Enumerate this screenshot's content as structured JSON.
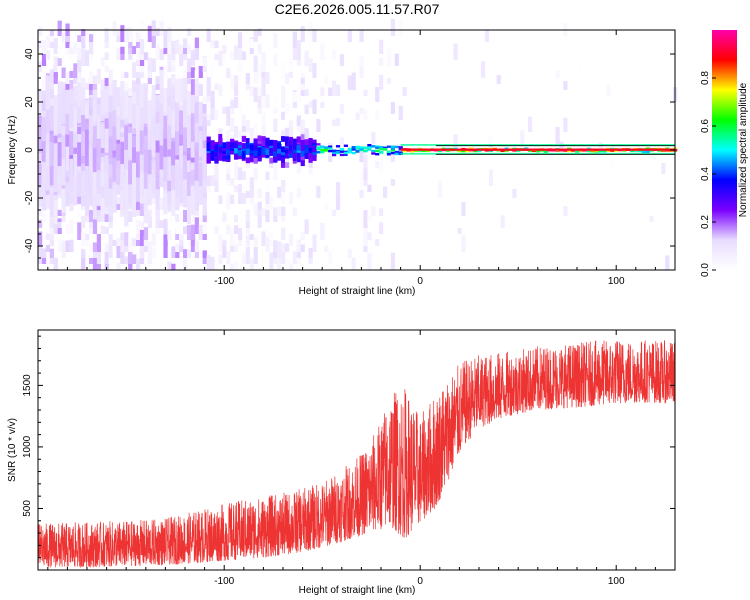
{
  "chart_data": [
    {
      "type": "heatmap",
      "title": "C2E6.2026.005.11.57.R07",
      "xlabel": "Height of straight line (km)",
      "ylabel": "Frequency (Hz)",
      "xlim": [
        -195,
        130
      ],
      "ylim": [
        -50,
        50
      ],
      "xticks": [
        -100,
        0,
        100
      ],
      "yticks": [
        -40,
        -20,
        0,
        20,
        40
      ],
      "colorbar": {
        "label": "Normalized spectral amplitude",
        "range": [
          0,
          1
        ],
        "ticks": [
          0.0,
          0.2,
          0.4,
          0.6,
          0.8
        ],
        "colormap": [
          "#ffffff",
          "#e8dcff",
          "#7a00ff",
          "#0000ff",
          "#00ffff",
          "#00ff00",
          "#ffff00",
          "#ff0000",
          "#ff00aa"
        ]
      },
      "ridge": {
        "frequency": 0,
        "description_segments": [
          {
            "x_from": -195,
            "x_to": -110,
            "spread_hz": 50,
            "amplitude": 0.15
          },
          {
            "x_from": -110,
            "x_to": -55,
            "spread_hz": 12,
            "amplitude": 0.4
          },
          {
            "x_from": -55,
            "x_to": -10,
            "spread_hz": 5,
            "amplitude": 0.55
          },
          {
            "x_from": -10,
            "x_to": 130,
            "spread_hz": 1.5,
            "amplitude": 0.9
          }
        ]
      }
    },
    {
      "type": "line",
      "title": "",
      "xlabel": "Height of straight line (km)",
      "ylabel": "SNR (10 * v/v)",
      "xlim": [
        -195,
        130
      ],
      "ylim": [
        0,
        1950
      ],
      "xticks": [
        -100,
        0,
        100
      ],
      "yticks": [
        500,
        1000,
        1500
      ],
      "color": "#ee3333",
      "envelope": [
        {
          "x": -195,
          "low": 20,
          "high": 380
        },
        {
          "x": -170,
          "low": 20,
          "high": 390
        },
        {
          "x": -150,
          "low": 30,
          "high": 400
        },
        {
          "x": -130,
          "low": 40,
          "high": 420
        },
        {
          "x": -110,
          "low": 60,
          "high": 500
        },
        {
          "x": -95,
          "low": 80,
          "high": 560
        },
        {
          "x": -80,
          "low": 100,
          "high": 600
        },
        {
          "x": -65,
          "low": 130,
          "high": 640
        },
        {
          "x": -50,
          "low": 180,
          "high": 720
        },
        {
          "x": -40,
          "low": 230,
          "high": 820
        },
        {
          "x": -30,
          "low": 280,
          "high": 950
        },
        {
          "x": -22,
          "low": 320,
          "high": 1150
        },
        {
          "x": -15,
          "low": 350,
          "high": 1450
        },
        {
          "x": -8,
          "low": 250,
          "high": 1500
        },
        {
          "x": 0,
          "low": 380,
          "high": 1250
        },
        {
          "x": 8,
          "low": 500,
          "high": 1450
        },
        {
          "x": 15,
          "low": 750,
          "high": 1600
        },
        {
          "x": 22,
          "low": 1000,
          "high": 1700
        },
        {
          "x": 30,
          "low": 1150,
          "high": 1750
        },
        {
          "x": 45,
          "low": 1250,
          "high": 1780
        },
        {
          "x": 60,
          "low": 1300,
          "high": 1820
        },
        {
          "x": 80,
          "low": 1320,
          "high": 1850
        },
        {
          "x": 100,
          "low": 1350,
          "high": 1880
        },
        {
          "x": 115,
          "low": 1360,
          "high": 1880
        },
        {
          "x": 130,
          "low": 1350,
          "high": 1860
        }
      ]
    }
  ]
}
